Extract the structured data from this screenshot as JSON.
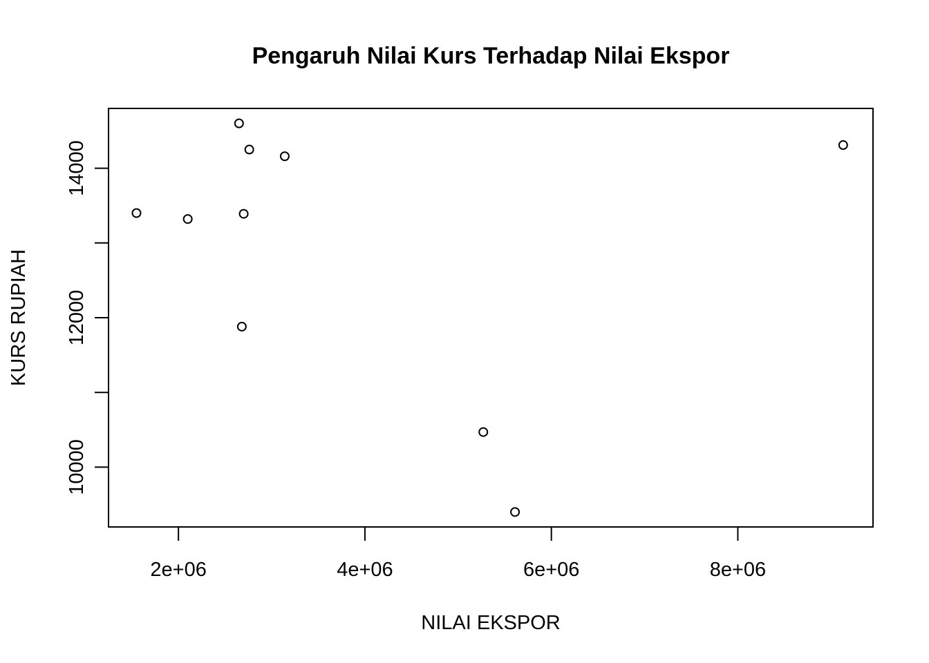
{
  "chart_data": {
    "type": "scatter",
    "title": "Pengaruh Nilai Kurs Terhadap Nilai Ekspor",
    "xlabel": "NILAI EKSPOR",
    "ylabel": "KURS RUPIAH",
    "xlim": [
      1250000,
      9450000
    ],
    "ylim": [
      9200,
      14800
    ],
    "x_ticks": [
      2000000,
      4000000,
      6000000,
      8000000
    ],
    "x_tick_labels": [
      "2e+06",
      "4e+06",
      "6e+06",
      "8e+06"
    ],
    "y_ticks": [
      10000,
      11000,
      12000,
      13000,
      14000
    ],
    "y_tick_labels": [
      "10000",
      "",
      "12000",
      "",
      "14000"
    ],
    "grid": false,
    "marker": "open-circle",
    "points": [
      {
        "x": 1550000,
        "y": 13400
      },
      {
        "x": 2100000,
        "y": 13320
      },
      {
        "x": 2650000,
        "y": 14600
      },
      {
        "x": 2700000,
        "y": 13390
      },
      {
        "x": 2760000,
        "y": 14250
      },
      {
        "x": 3140000,
        "y": 14160
      },
      {
        "x": 2680000,
        "y": 11880
      },
      {
        "x": 5270000,
        "y": 10470
      },
      {
        "x": 5610000,
        "y": 9400
      },
      {
        "x": 9130000,
        "y": 14310
      }
    ]
  }
}
